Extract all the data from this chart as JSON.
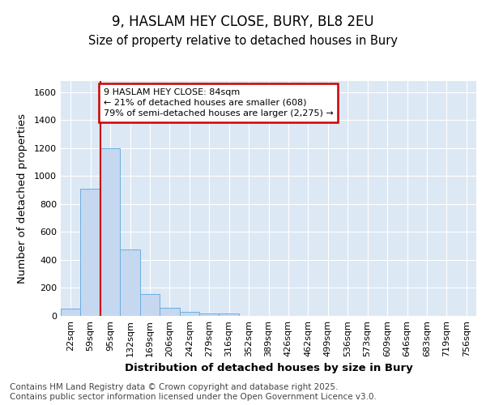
{
  "title1": "9, HASLAM HEY CLOSE, BURY, BL8 2EU",
  "title2": "Size of property relative to detached houses in Bury",
  "xlabel": "Distribution of detached houses by size in Bury",
  "ylabel": "Number of detached properties",
  "categories": [
    "22sqm",
    "59sqm",
    "95sqm",
    "132sqm",
    "169sqm",
    "206sqm",
    "242sqm",
    "279sqm",
    "316sqm",
    "352sqm",
    "389sqm",
    "426sqm",
    "462sqm",
    "499sqm",
    "536sqm",
    "573sqm",
    "609sqm",
    "646sqm",
    "683sqm",
    "719sqm",
    "756sqm"
  ],
  "values": [
    55,
    910,
    1200,
    475,
    155,
    60,
    28,
    15,
    18,
    0,
    0,
    0,
    0,
    0,
    0,
    0,
    0,
    0,
    0,
    0,
    0
  ],
  "bar_color": "#c5d8f0",
  "bar_edge_color": "#6aaee0",
  "annotation_text": "9 HASLAM HEY CLOSE: 84sqm\n← 21% of detached houses are smaller (608)\n79% of semi-detached houses are larger (2,275) →",
  "annotation_box_color": "white",
  "annotation_box_edge_color": "#cc0000",
  "vline_color": "#cc0000",
  "vline_x": 1.5,
  "ylim": [
    0,
    1680
  ],
  "yticks": [
    0,
    200,
    400,
    600,
    800,
    1000,
    1200,
    1400,
    1600
  ],
  "plot_bg_color": "#dde8f5",
  "fig_bg_color": "#ffffff",
  "footer_text": "Contains HM Land Registry data © Crown copyright and database right 2025.\nContains public sector information licensed under the Open Government Licence v3.0.",
  "title_fontsize": 12,
  "subtitle_fontsize": 10.5,
  "axis_label_fontsize": 9.5,
  "tick_fontsize": 8,
  "annotation_fontsize": 8,
  "footer_fontsize": 7.5
}
